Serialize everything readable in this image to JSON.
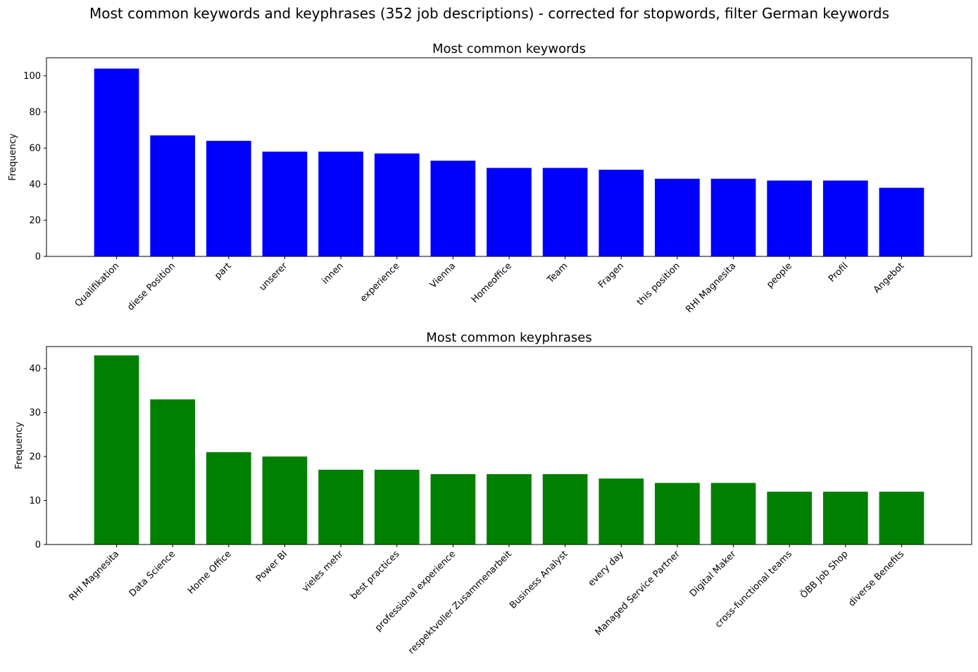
{
  "figure": {
    "suptitle": "Most common keywords and keyphrases (352 job descriptions) - corrected for stopwords, filter German keywords"
  },
  "chart_data": [
    {
      "type": "bar",
      "title": "Most common keywords",
      "xlabel": "",
      "ylabel": "Frequency",
      "color": "#0000ff",
      "ylim": [
        0,
        110
      ],
      "yticks": [
        0,
        20,
        40,
        60,
        80,
        100
      ],
      "grid": false,
      "categories": [
        "Qualifikation",
        "diese Position",
        "part",
        "unserer",
        "innen",
        "experience",
        "Vienna",
        "Homeoffice",
        "Team",
        "Fragen",
        "this position",
        "RHI Magnesita",
        "people",
        "Profil",
        "Angebot"
      ],
      "values": [
        104,
        67,
        64,
        58,
        58,
        57,
        53,
        49,
        49,
        48,
        43,
        43,
        42,
        42,
        38
      ]
    },
    {
      "type": "bar",
      "title": "Most common keyphrases",
      "xlabel": "",
      "ylabel": "Frequency",
      "color": "#008000",
      "ylim": [
        0,
        45
      ],
      "yticks": [
        0,
        10,
        20,
        30,
        40
      ],
      "grid": false,
      "categories": [
        "RHI Magnesita",
        "Data Science",
        "Home Office",
        "Power BI",
        "vieles mehr",
        "best practices",
        "professional experience",
        "respektvoller Zusammenarbeit",
        "Business Analyst",
        "every day",
        "Managed Service Partner",
        "Digital Maker",
        "cross-functional teams",
        "ÖBB Job Shop",
        "diverse Benefits"
      ],
      "values": [
        43,
        33,
        21,
        20,
        17,
        17,
        16,
        16,
        16,
        15,
        14,
        14,
        12,
        12,
        12
      ]
    }
  ]
}
